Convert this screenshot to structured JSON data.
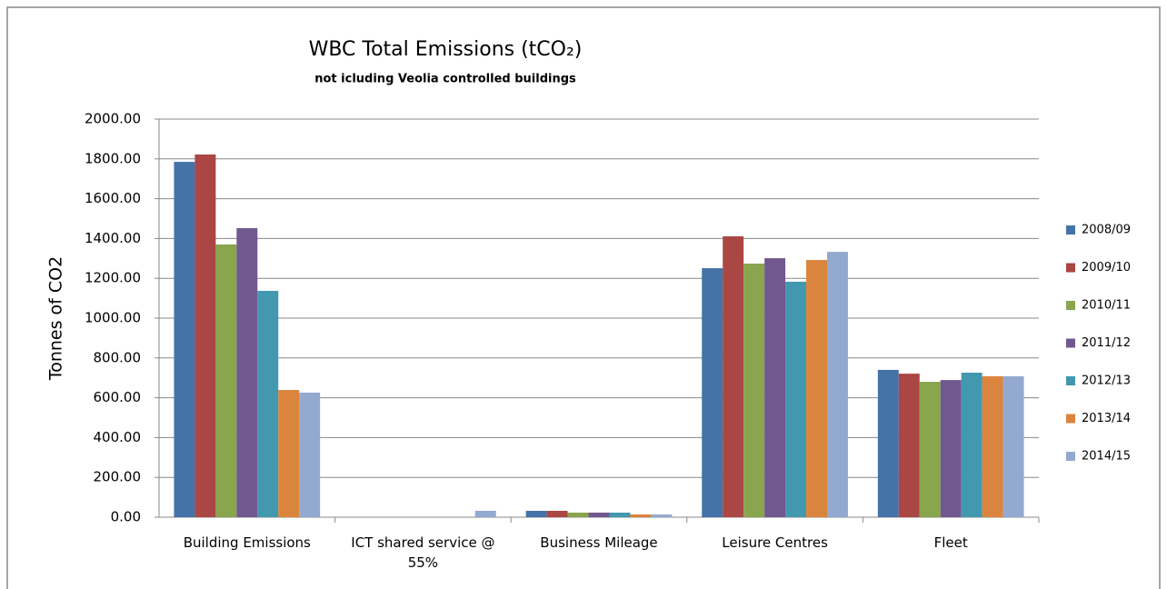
{
  "chart_data": {
    "type": "bar",
    "title": "WBC Total Emissions (tCO₂)",
    "subtitle": "not icluding Veolia controlled buildings",
    "y_label": "Tonnes of CO2",
    "categories": [
      "Building Emissions",
      "ICT shared service @ 55%",
      "Business Mileage",
      "Leisure Centres",
      "Fleet"
    ],
    "series": [
      {
        "name": "2008/09",
        "color": "#4572a7",
        "values": [
          1785,
          0,
          32,
          1251,
          740
        ]
      },
      {
        "name": "2009/10",
        "color": "#aa4643",
        "values": [
          1822,
          0,
          32,
          1411,
          721
        ]
      },
      {
        "name": "2010/11",
        "color": "#89a54e",
        "values": [
          1370,
          0,
          23,
          1274,
          680
        ]
      },
      {
        "name": "2011/12",
        "color": "#71588f",
        "values": [
          1452,
          0,
          23,
          1301,
          689
        ]
      },
      {
        "name": "2012/13",
        "color": "#4198af",
        "values": [
          1137,
          0,
          23,
          1183,
          726
        ]
      },
      {
        "name": "2013/14",
        "color": "#db843d",
        "values": [
          639,
          0,
          14,
          1292,
          708
        ]
      },
      {
        "name": "2014/15",
        "color": "#93a9cf",
        "values": [
          626,
          32,
          14,
          1333,
          708
        ]
      }
    ],
    "ylim": [
      0,
      2000
    ],
    "yticks": [
      {
        "value": 0,
        "label": "0.00"
      },
      {
        "value": 200,
        "label": "200.00"
      },
      {
        "value": 400,
        "label": "400.00"
      },
      {
        "value": 600,
        "label": "600.00"
      },
      {
        "value": 800,
        "label": "800.00"
      },
      {
        "value": 1000,
        "label": "1000.00"
      },
      {
        "value": 1200,
        "label": "1200.00"
      },
      {
        "value": 1400,
        "label": "1400.00"
      },
      {
        "value": 1600,
        "label": "1600.00"
      },
      {
        "value": 1800,
        "label": "1800.00"
      },
      {
        "value": 2000,
        "label": "2000.00"
      }
    ],
    "grid": true,
    "legend": "right"
  }
}
